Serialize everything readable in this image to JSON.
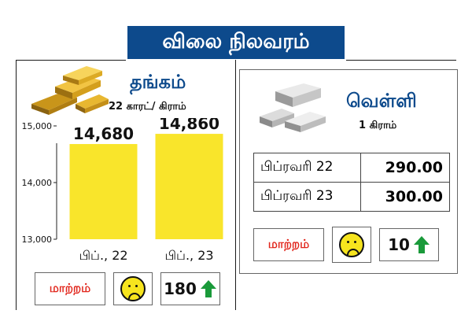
{
  "header": {
    "title": "விலை நிலவரம்"
  },
  "gold": {
    "title": "தங்கம்",
    "unit": "22 காரட்/ கிராம்",
    "change_label": "மாற்றம்",
    "change_value": "180",
    "icon": "gold-bars-image"
  },
  "silver": {
    "title": "வெள்ளி",
    "unit": "1 கிராம்",
    "rows": [
      {
        "date": "பிப்ரவரி 22",
        "price": "290.00"
      },
      {
        "date": "பிப்ரவரி 23",
        "price": "300.00"
      }
    ],
    "change_label": "மாற்றம்",
    "change_value": "10",
    "icon": "silver-bars-image"
  },
  "chart_data": {
    "type": "bar",
    "categories": [
      "பிப்., 22",
      "பிப்., 23"
    ],
    "values": [
      14680,
      14860
    ],
    "value_labels": [
      "14,680",
      "14,860"
    ],
    "ylim": [
      13000,
      15000
    ],
    "yticks": [
      13000,
      14000,
      15000
    ],
    "ytick_labels": [
      "13,000",
      "14,000",
      "15,000"
    ],
    "bar_color": "#f9e52b",
    "grid": false
  },
  "colors": {
    "banner": "#0d4a8c",
    "accent_red": "#e1251b",
    "arrow_green": "#1a9a3a"
  }
}
